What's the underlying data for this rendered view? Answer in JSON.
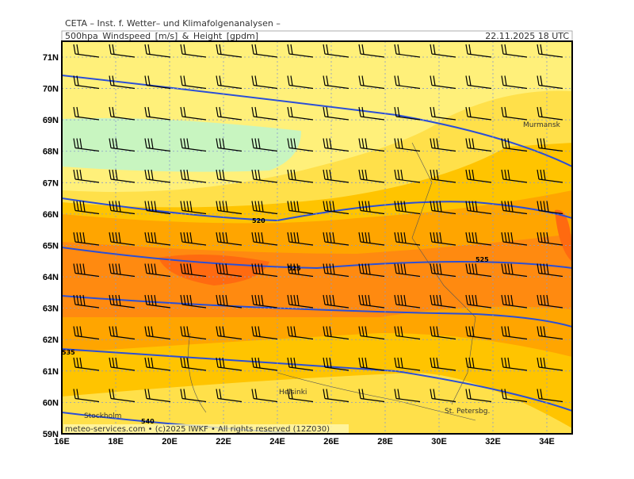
{
  "header": {
    "title": "CETA – Inst. f. Wetter– und Klimafolgenanalysen –",
    "subtitle": "500hpa_Windspeed_[m/s]_&_Height_[gpdm]",
    "datetime": "22.11.2025  18 UTC"
  },
  "axes": {
    "lon": [
      {
        "value": 16,
        "label": "16E"
      },
      {
        "value": 18,
        "label": "18E"
      },
      {
        "value": 20,
        "label": "20E"
      },
      {
        "value": 22,
        "label": "22E"
      },
      {
        "value": 24,
        "label": "24E"
      },
      {
        "value": 26,
        "label": "26E"
      },
      {
        "value": 28,
        "label": "28E"
      },
      {
        "value": 30,
        "label": "30E"
      },
      {
        "value": 32,
        "label": "32E"
      },
      {
        "value": 34,
        "label": "34E"
      }
    ],
    "lat": [
      {
        "value": 71,
        "label": "71N"
      },
      {
        "value": 70,
        "label": "70N"
      },
      {
        "value": 69,
        "label": "69N"
      },
      {
        "value": 68,
        "label": "68N"
      },
      {
        "value": 67,
        "label": "67N"
      },
      {
        "value": 66,
        "label": "66N"
      },
      {
        "value": 65,
        "label": "65N"
      },
      {
        "value": 64,
        "label": "64N"
      },
      {
        "value": 63,
        "label": "63N"
      },
      {
        "value": 62,
        "label": "62N"
      },
      {
        "value": 61,
        "label": "61N"
      },
      {
        "value": 60,
        "label": "60N"
      },
      {
        "value": 59,
        "label": "59N"
      }
    ]
  },
  "places": [
    "Murmansk",
    "Helsinki",
    "Stockholm",
    "St. Petersbg."
  ],
  "contour_labels": [
    "520",
    "525",
    "525",
    "535",
    "540"
  ],
  "footer": "meteo-services.com • (c)2025 IWKF • All rights reserved (12Z030)"
}
